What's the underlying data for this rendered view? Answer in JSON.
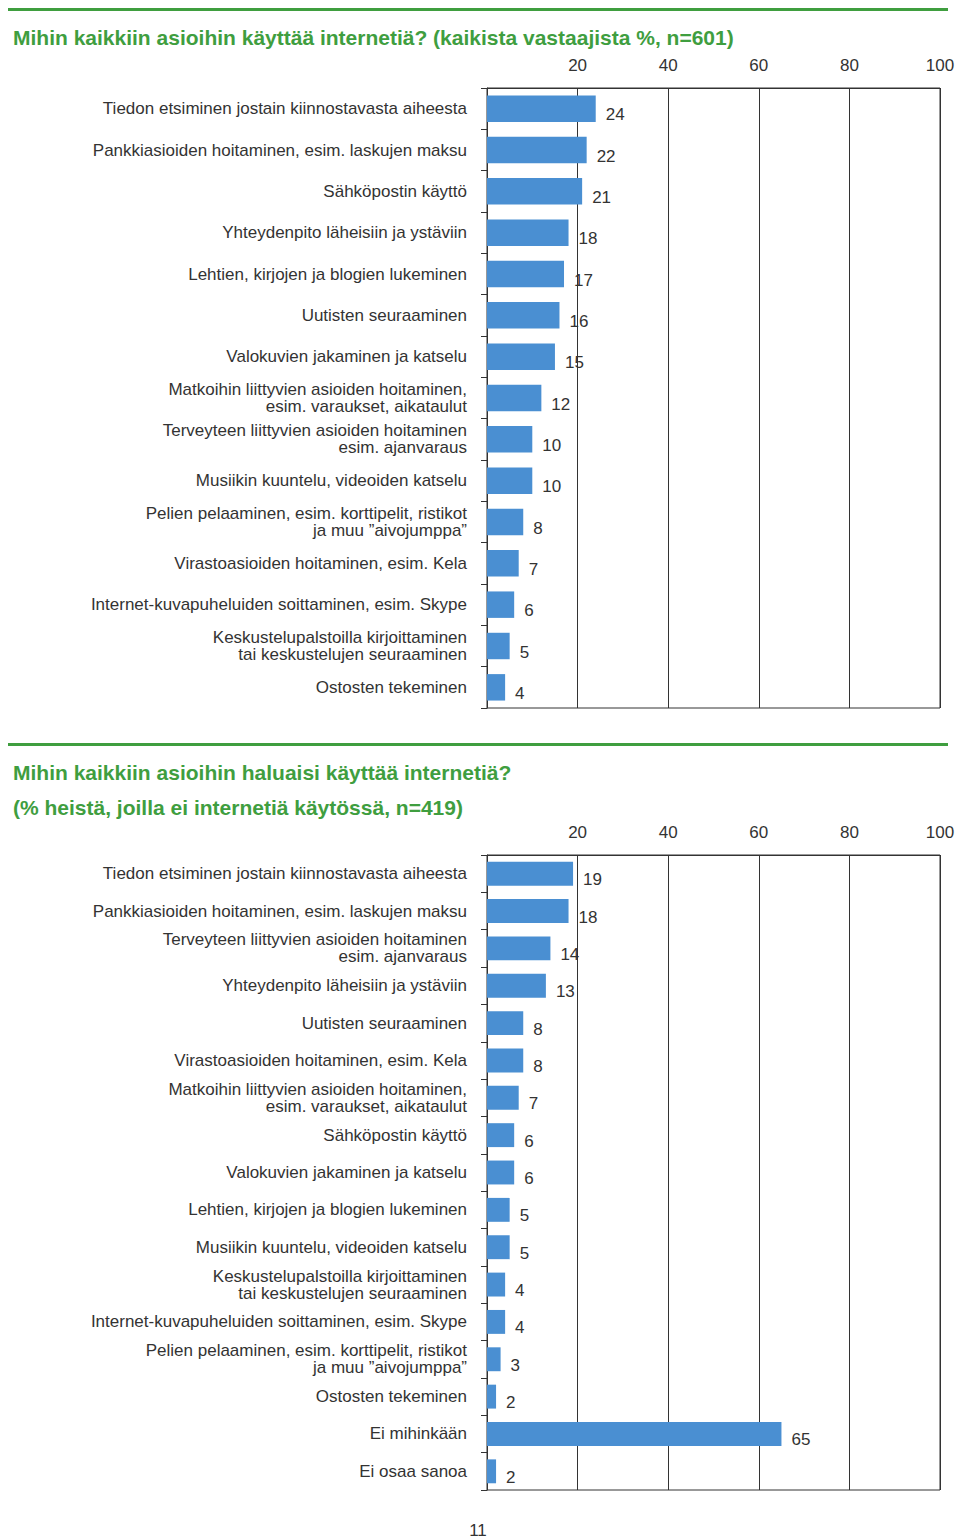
{
  "chart_data": [
    {
      "type": "bar",
      "title": "Mihin kaikkiin asioihin käyttää internetiä? (kaikista vastaajista %, n=601)",
      "orientation": "horizontal",
      "categories": [
        "Tiedon etsiminen jostain kiinnostavasta aiheesta",
        "Pankkiasioiden hoitaminen, esim. laskujen maksu",
        "Sähköpostin käyttö",
        "Yhteydenpito läheisiin ja ystäviin",
        "Lehtien, kirjojen ja blogien lukeminen",
        "Uutisten seuraaminen",
        "Valokuvien jakaminen ja katselu",
        "Matkoihin liittyvien asioiden hoitaminen,\nesim. varaukset, aikataulut",
        "Terveyteen liittyvien asioiden hoitaminen\nesim. ajanvaraus",
        "Musiikin kuuntelu, videoiden katselu",
        "Pelien pelaaminen, esim. korttipelit, ristikot\nja muu ”aivojumppa”",
        "Virastoasioiden hoitaminen, esim. Kela",
        "Internet-kuvapuheluiden soittaminen, esim. Skype",
        "Keskustelupalstoilla kirjoittaminen\ntai keskustelujen seuraaminen",
        "Ostosten tekeminen"
      ],
      "values": [
        24,
        22,
        21,
        18,
        17,
        16,
        15,
        12,
        10,
        10,
        8,
        7,
        6,
        5,
        4
      ],
      "color": "#4a8fd2",
      "xlim": [
        0,
        100
      ],
      "xticks": [
        20,
        40,
        60,
        80,
        100
      ],
      "grid": true,
      "data_labels": true
    },
    {
      "type": "bar",
      "title": "Mihin kaikkiin asioihin haluaisi käyttää internetiä?",
      "subtitle": "(% heistä, joilla ei internetiä käytössä, n=419)",
      "orientation": "horizontal",
      "categories": [
        "Tiedon etsiminen jostain kiinnostavasta aiheesta",
        "Pankkiasioiden hoitaminen, esim. laskujen maksu",
        "Terveyteen liittyvien asioiden hoitaminen\nesim. ajanvaraus",
        "Yhteydenpito läheisiin ja ystäviin",
        "Uutisten seuraaminen",
        "Virastoasioiden hoitaminen, esim. Kela",
        "Matkoihin liittyvien asioiden hoitaminen,\nesim. varaukset, aikataulut",
        "Sähköpostin käyttö",
        "Valokuvien jakaminen ja katselu",
        "Lehtien, kirjojen ja blogien lukeminen",
        "Musiikin kuuntelu, videoiden katselu",
        "Keskustelupalstoilla kirjoittaminen\ntai keskustelujen seuraaminen",
        "Internet-kuvapuheluiden soittaminen, esim. Skype",
        "Pelien pelaaminen, esim. korttipelit, ristikot\nja muu ”aivojumppa”",
        "Ostosten tekeminen",
        "Ei mihinkään",
        "Ei osaa sanoa"
      ],
      "values": [
        19,
        18,
        14,
        13,
        8,
        8,
        7,
        6,
        6,
        5,
        5,
        4,
        4,
        3,
        2,
        65,
        2
      ],
      "color": "#4a8fd2",
      "xlim": [
        0,
        100
      ],
      "xticks": [
        20,
        40,
        60,
        80,
        100
      ],
      "grid": true,
      "data_labels": true
    }
  ],
  "footer": "11"
}
